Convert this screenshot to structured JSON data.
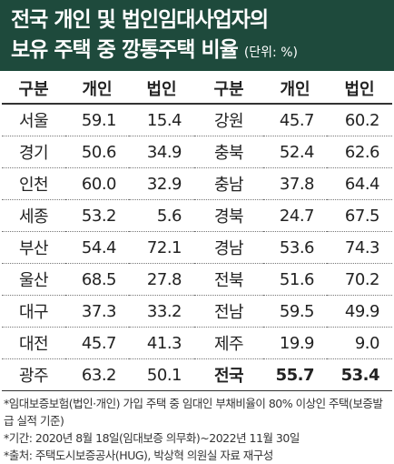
{
  "title": {
    "line1": "전국 개인 및 법인임대사업자의",
    "line2": "보유 주택 중 깡통주택 비율",
    "unit": "(단위: %)"
  },
  "table": {
    "columns": [
      "구분",
      "개인",
      "법인",
      "구분",
      "개인",
      "법인"
    ],
    "rows": [
      [
        "서울",
        "59.1",
        "15.4",
        "강원",
        "45.7",
        "60.2"
      ],
      [
        "경기",
        "50.6",
        "34.9",
        "충북",
        "52.4",
        "62.6"
      ],
      [
        "인천",
        "60.0",
        "32.9",
        "충남",
        "37.8",
        "64.4"
      ],
      [
        "세종",
        "53.2",
        "5.6",
        "경북",
        "24.7",
        "67.5"
      ],
      [
        "부산",
        "54.4",
        "72.1",
        "경남",
        "53.6",
        "74.3"
      ],
      [
        "울산",
        "68.5",
        "27.8",
        "전북",
        "51.6",
        "70.2"
      ],
      [
        "대구",
        "37.3",
        "33.2",
        "전남",
        "59.5",
        "49.9"
      ],
      [
        "대전",
        "45.7",
        "41.3",
        "제주",
        "19.9",
        "9.0"
      ],
      [
        "광주",
        "63.2",
        "50.1",
        "전국",
        "55.7",
        "53.4"
      ]
    ]
  },
  "notes": [
    "*임대보증보험(법인·개인) 가입 주택 중 임대인 부채비율이 80% 이상인 주택(보증발급 실적 기준)",
    "*기간: 2020년 8월 18일(임대보증 의무화)~2022년 11월 30일",
    "*출처: 주택도시보증공사(HUG), 박상혁 의원실 자료 재구성"
  ]
}
